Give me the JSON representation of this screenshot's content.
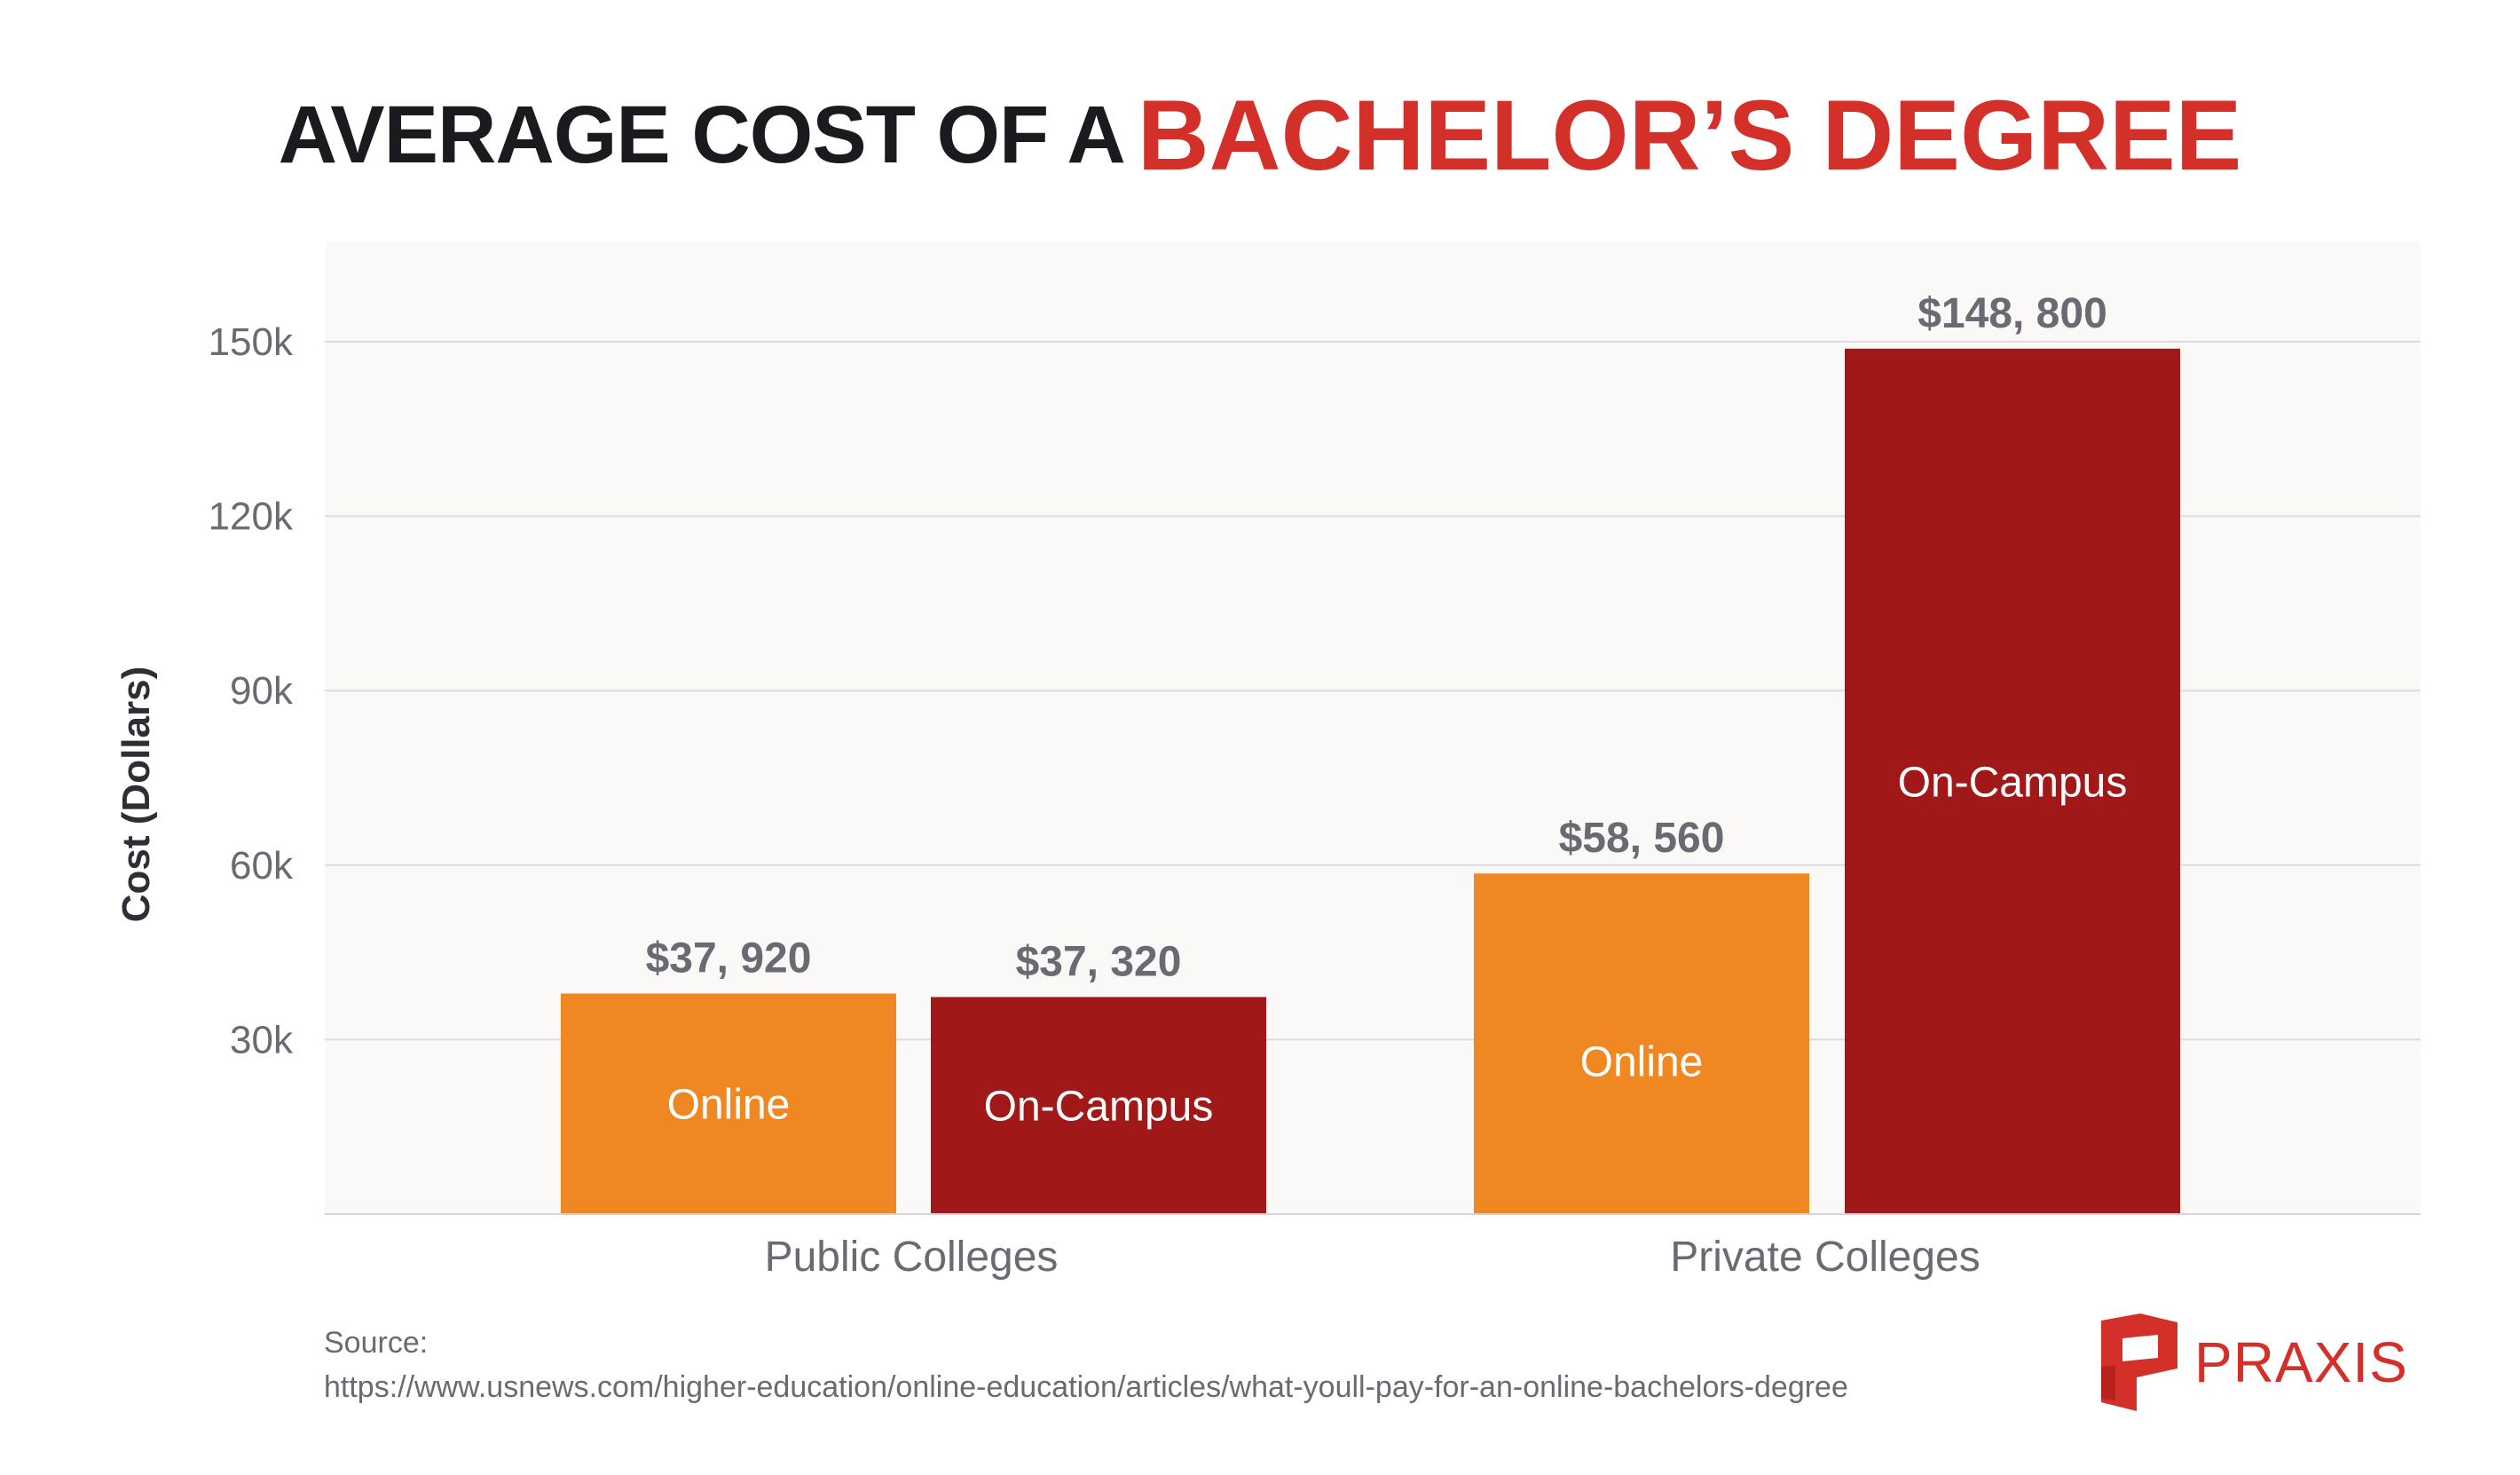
{
  "title": {
    "part1": "AVERAGE COST OF A",
    "part2": "BACHELOR’S DEGREE"
  },
  "colors": {
    "title_dark": "#1b1b1f",
    "accent_red": "#d3302a",
    "online": "#ef8823",
    "on_campus": "#a01918",
    "plot_bg": "#faf9f7",
    "grid": "#ddd9e6",
    "label_gray": "#6a6a73"
  },
  "chart_data": {
    "type": "bar",
    "categories": [
      "Public Colleges",
      "Private Colleges"
    ],
    "series": [
      {
        "name": "Online",
        "values": [
          37920,
          58560
        ],
        "value_labels": [
          "$37, 920",
          "$58, 560"
        ],
        "color": "#ef8823"
      },
      {
        "name": "On-Campus",
        "values": [
          37320,
          148800
        ],
        "value_labels": [
          "$37, 320",
          "$148, 800"
        ],
        "color": "#a01918"
      }
    ],
    "ylabel": "Cost (Dollars)",
    "ylim": [
      0,
      165000
    ],
    "yticks": [
      30000,
      60000,
      90000,
      120000,
      150000
    ],
    "ytick_labels": [
      "30k",
      "60k",
      "90k",
      "120k",
      "150k"
    ],
    "grid": true
  },
  "source": {
    "label": "Source:",
    "url": "https://www.usnews.com/higher-education/online-education/articles/what-youll-pay-for-an-online-bachelors-degree"
  },
  "logo": {
    "text": "PRAXIS",
    "icon": "praxis-logo-icon"
  }
}
